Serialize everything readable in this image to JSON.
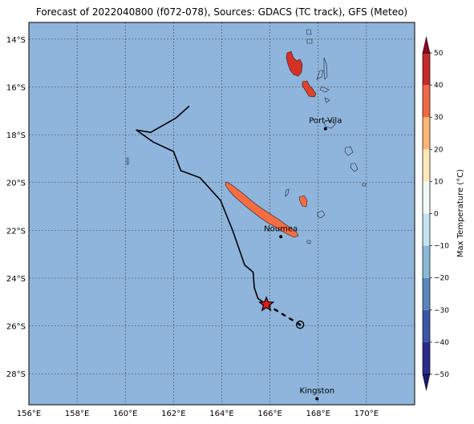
{
  "title": "Forecast of 2022040800 (f072-078), Sources: GDACS (TC track), GFS (Meteo)",
  "map": {
    "lon_range": [
      156,
      172
    ],
    "lat_range": [
      -29.3,
      -13.3
    ],
    "lon_ticks": [
      156,
      158,
      160,
      162,
      164,
      166,
      168,
      170
    ],
    "lon_tick_labels": [
      "156°E",
      "158°E",
      "160°E",
      "162°E",
      "164°E",
      "166°E",
      "168°E",
      "170°E"
    ],
    "lat_ticks": [
      -14,
      -16,
      -18,
      -20,
      -22,
      -24,
      -26,
      -28
    ],
    "lat_tick_labels": [
      "14°S",
      "16°S",
      "18°S",
      "20°S",
      "22°S",
      "24°S",
      "26°S",
      "28°S"
    ],
    "ocean_color": "#8fb5dc",
    "grid": true
  },
  "cities": [
    {
      "name": "Port-Vila",
      "lon": 168.3,
      "lat": -17.75
    },
    {
      "name": "Noumea",
      "lon": 166.45,
      "lat": -22.27
    },
    {
      "name": "Kingston",
      "lon": 167.95,
      "lat": -29.05
    }
  ],
  "track": {
    "past": [
      [
        162.65,
        -16.8
      ],
      [
        162.1,
        -17.3
      ],
      [
        161.05,
        -17.9
      ],
      [
        160.45,
        -17.8
      ],
      [
        161.15,
        -18.3
      ],
      [
        162.0,
        -18.7
      ],
      [
        162.3,
        -19.5
      ],
      [
        163.1,
        -19.8
      ],
      [
        163.95,
        -20.75
      ],
      [
        164.45,
        -22.0
      ],
      [
        164.95,
        -23.45
      ],
      [
        165.3,
        -23.75
      ],
      [
        165.35,
        -24.4
      ],
      [
        165.5,
        -24.85
      ],
      [
        165.85,
        -25.1
      ]
    ],
    "forecast": [
      [
        165.85,
        -25.1
      ],
      [
        167.25,
        -25.95
      ]
    ],
    "current_position": [
      165.85,
      -25.1
    ],
    "forecast_position": [
      167.25,
      -25.95
    ],
    "current_marker_color": "#e41a1c"
  },
  "colorbar": {
    "label": "Max Temperature (°C)",
    "min": -55,
    "max": 55,
    "ticks": [
      -50,
      -40,
      -30,
      -20,
      -10,
      0,
      10,
      20,
      30,
      40,
      50
    ],
    "tick_labels": [
      "−50",
      "−40",
      "−30",
      "−20",
      "−10",
      "0",
      "10",
      "20",
      "30",
      "40",
      "50"
    ],
    "bands": [
      {
        "from": -55,
        "to": -50,
        "color": "#1a1a6e"
      },
      {
        "from": -50,
        "to": -40,
        "color": "#2b2c8c"
      },
      {
        "from": -40,
        "to": -30,
        "color": "#3c56a6"
      },
      {
        "from": -30,
        "to": -20,
        "color": "#5a86bd"
      },
      {
        "from": -20,
        "to": -10,
        "color": "#8ab8d7"
      },
      {
        "from": -10,
        "to": 0,
        "color": "#c4e2ef"
      },
      {
        "from": 0,
        "to": 10,
        "color": "#f1f9f7"
      },
      {
        "from": 10,
        "to": 20,
        "color": "#fde9b9"
      },
      {
        "from": 20,
        "to": 30,
        "color": "#fbb577"
      },
      {
        "from": 30,
        "to": 40,
        "color": "#ef6a44"
      },
      {
        "from": 40,
        "to": 50,
        "color": "#c72a2c"
      },
      {
        "from": 50,
        "to": 55,
        "color": "#8a0a26"
      }
    ]
  }
}
